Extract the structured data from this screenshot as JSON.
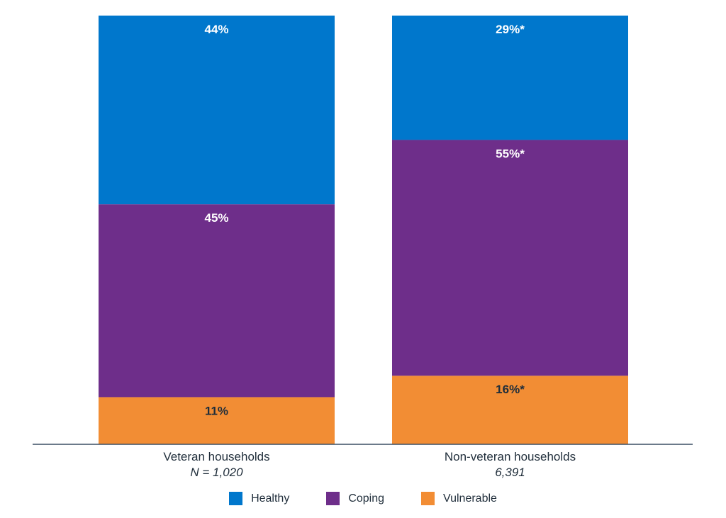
{
  "chart_data": {
    "type": "bar",
    "stacked": true,
    "orientation": "vertical",
    "categories": [
      "Veteran households",
      "Non-veteran households"
    ],
    "category_notes": [
      "N = 1,020",
      "6,391"
    ],
    "series": [
      {
        "name": "Vulnerable",
        "values": [
          11,
          16
        ],
        "labels": [
          "11%",
          "16%*"
        ],
        "color": "#f28d34",
        "label_color": "#1f2d3a"
      },
      {
        "name": "Coping",
        "values": [
          45,
          55
        ],
        "labels": [
          "45%",
          "55%*"
        ],
        "color": "#6e2e8a",
        "label_color": "#ffffff"
      },
      {
        "name": "Healthy",
        "values": [
          44,
          29
        ],
        "labels": [
          "44%",
          "29%*"
        ],
        "color": "#0077cc",
        "label_color": "#ffffff"
      }
    ],
    "ylim": [
      0,
      100
    ],
    "grid": false,
    "legend_position": "bottom",
    "legend": [
      "Healthy",
      "Coping",
      "Vulnerable"
    ]
  }
}
